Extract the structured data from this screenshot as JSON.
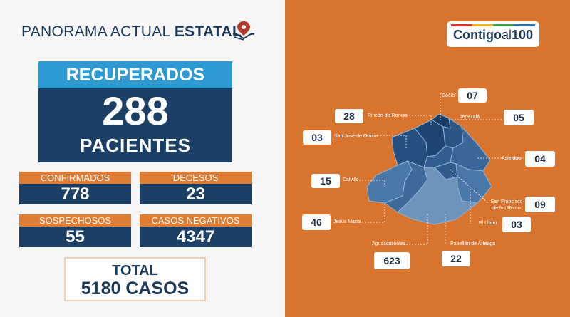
{
  "header": {
    "title_light": "PANORAMA ACTUAL",
    "title_bold": "ESTATAL",
    "icon": "map-pin-hand-icon"
  },
  "recuperados": {
    "label": "RECUPERADOS",
    "value": "288",
    "unit": "PACIENTES"
  },
  "stats": {
    "confirmados": {
      "label": "CONFIRMADOS",
      "value": "778"
    },
    "decesos": {
      "label": "DECESOS",
      "value": "23"
    },
    "sospechosos": {
      "label": "SOSPECHOSOS",
      "value": "55"
    },
    "negativos": {
      "label": "CASOS NEGATIVOS",
      "value": "4347"
    }
  },
  "total": {
    "label": "TOTAL",
    "value": "5180 CASOS"
  },
  "logo": {
    "main": "Contigo",
    "suffix": "al",
    "number": "100"
  },
  "municipios": {
    "cosio": {
      "name": "Cosío",
      "value": "07"
    },
    "rincon": {
      "name": "Rincón de Romos",
      "value": "28"
    },
    "tepezala": {
      "name": "Tepezalá",
      "value": "05"
    },
    "sanjose": {
      "name": "San José de Gracia",
      "value": "03"
    },
    "asientos": {
      "name": "Asientos",
      "value": "04"
    },
    "calvillo": {
      "name": "Calvillo",
      "value": "15"
    },
    "sanfrancisco": {
      "name": "San Francisco de los Romo",
      "value": "09"
    },
    "jesusmaria": {
      "name": "Jesús María",
      "value": "46"
    },
    "elllano": {
      "name": "El Llano",
      "value": "03"
    },
    "aguascalientes": {
      "name": "Aguascalientes",
      "value": "623"
    },
    "pabellon": {
      "name": "Pabellón de Arteaga",
      "value": "22"
    }
  },
  "colors": {
    "navy": "#1c3f66",
    "orange": "#e07b34",
    "bg_orange": "#d8742e",
    "light_blue": "#2e9ad3"
  }
}
